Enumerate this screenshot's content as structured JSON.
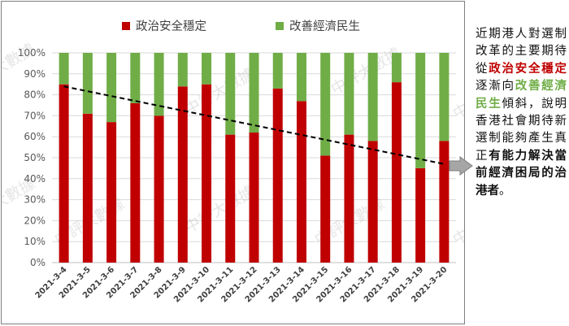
{
  "chart_data": {
    "type": "bar",
    "stacked": true,
    "categories": [
      "2021-3-4",
      "2021-3-5",
      "2021-3-6",
      "2021-3-7",
      "2021-3-8",
      "2021-3-9",
      "2021-3-10",
      "2021-3-11",
      "2021-3-12",
      "2021-3-13",
      "2021-3-14",
      "2021-3-15",
      "2021-3-16",
      "2021-3-17",
      "2021-3-18",
      "2021-3-19",
      "2021-3-20"
    ],
    "series": [
      {
        "name": "政治安全穩定",
        "color": "#c00000",
        "values": [
          85,
          71,
          67,
          76,
          70,
          84,
          85,
          61,
          62,
          83,
          77,
          51,
          61,
          58,
          86,
          45,
          58
        ]
      },
      {
        "name": "改善經濟民生",
        "color": "#70ad47",
        "values": [
          15,
          29,
          33,
          24,
          30,
          16,
          15,
          39,
          38,
          17,
          23,
          49,
          39,
          42,
          14,
          55,
          42
        ]
      }
    ],
    "ylim": [
      0,
      100
    ],
    "yticks": [
      "0%",
      "10%",
      "20%",
      "30%",
      "40%",
      "50%",
      "60%",
      "70%",
      "80%",
      "90%",
      "100%"
    ],
    "trendline": {
      "style": "dashed",
      "color": "#000000",
      "from": 84,
      "to": 47
    },
    "legend": "top",
    "watermark": "中評大數據"
  },
  "side_note": {
    "p1": "近期港人對選制改革的主要期待從",
    "p2": "政治安全穩定",
    "p3": "逐漸向",
    "p4": "改善經濟民生",
    "p5": "傾斜，說明香港社會期待新選制能夠產生真正",
    "p6": "有能力解決當前經濟困局的治港者",
    "p7": "。"
  }
}
